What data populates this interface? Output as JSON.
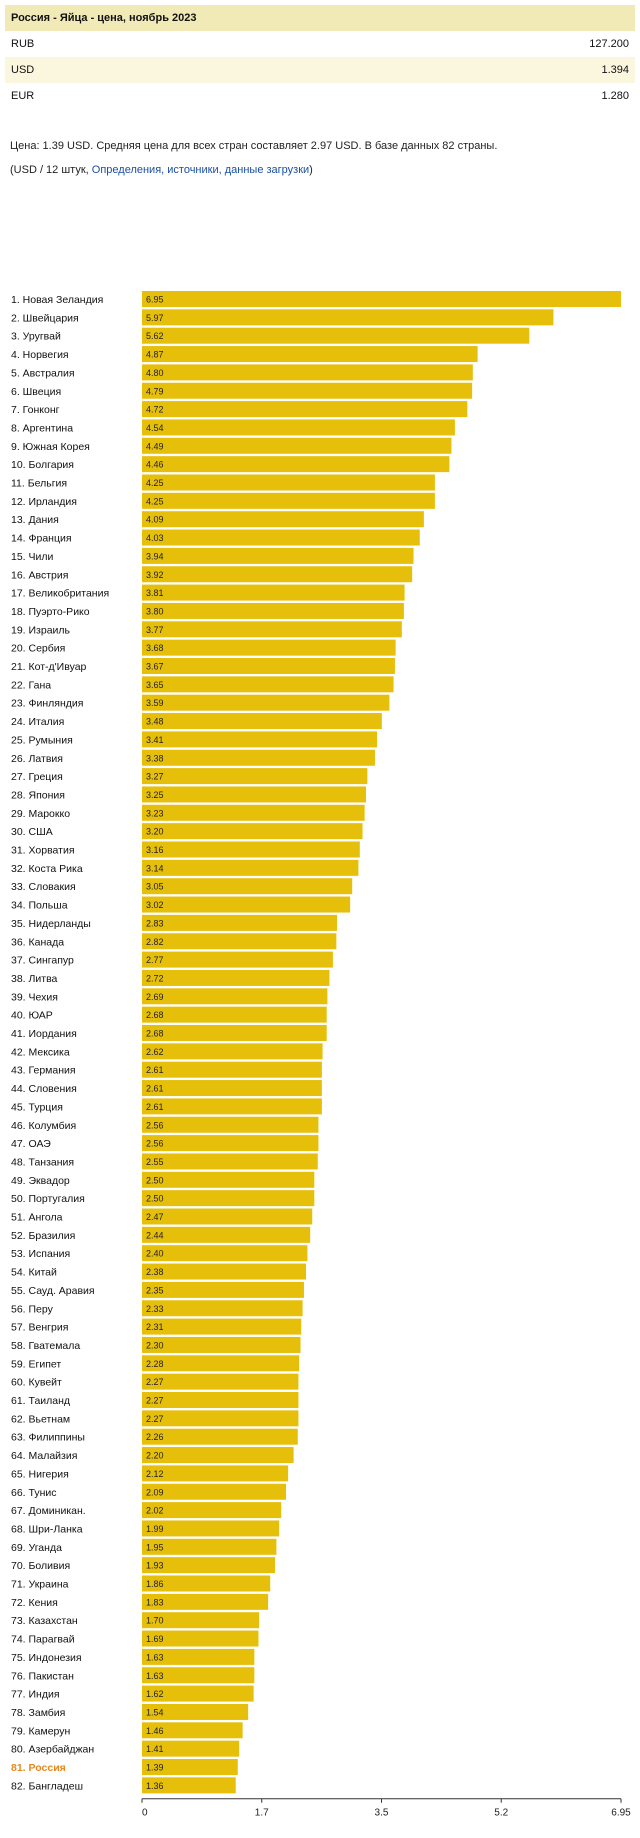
{
  "header": {
    "title": "Россия - Яйца - цена, ноябрь 2023"
  },
  "prices": [
    {
      "currency": "RUB",
      "value": "127.200"
    },
    {
      "currency": "USD",
      "value": "1.394"
    },
    {
      "currency": "EUR",
      "value": "1.280"
    }
  ],
  "info": {
    "summary": "Цена: 1.39 USD. Средняя цена для всех стран составляет 2.97 USD. В базе данных 82 страны.",
    "unit_prefix": "(USD / 12 штук, ",
    "link_text": "Определения, источники, данные загрузки",
    "unit_suffix": ")"
  },
  "chart_data": {
    "type": "bar",
    "orientation": "horizontal",
    "highlight_index": 80,
    "bar_color": "#e6bf0a",
    "highlight_label_color": "#e8891a",
    "xlim": [
      0,
      6.95
    ],
    "xticks": [
      "0",
      "1.7",
      "3.5",
      "5.2",
      "6.95"
    ],
    "xtick_values": [
      0,
      1.7375,
      3.475,
      5.2125,
      6.95
    ],
    "categories": [
      "1. Новая Зеландия",
      "2. Швейцария",
      "3. Уругвай",
      "4. Норвегия",
      "5. Австралия",
      "6. Швеция",
      "7. Гонконг",
      "8. Аргентина",
      "9. Южная Корея",
      "10. Болгария",
      "11. Бельгия",
      "12. Ирландия",
      "13. Дания",
      "14. Франция",
      "15. Чили",
      "16. Австрия",
      "17. Великобритания",
      "18. Пуэрто-Рико",
      "19. Израиль",
      "20. Сербия",
      "21. Кот-д'Ивуар",
      "22. Гана",
      "23. Финляндия",
      "24. Италия",
      "25. Румыния",
      "26. Латвия",
      "27. Греция",
      "28. Япония",
      "29. Марокко",
      "30. США",
      "31. Хорватия",
      "32. Коста Рика",
      "33. Словакия",
      "34. Польша",
      "35. Нидерланды",
      "36. Канада",
      "37. Сингапур",
      "38. Литва",
      "39. Чехия",
      "40. ЮАР",
      "41. Иордания",
      "42. Мексика",
      "43. Германия",
      "44. Словения",
      "45. Турция",
      "46. Колумбия",
      "47. ОАЭ",
      "48. Танзания",
      "49. Эквадор",
      "50. Португалия",
      "51. Ангола",
      "52. Бразилия",
      "53. Испания",
      "54. Китай",
      "55. Сауд. Аравия",
      "56. Перу",
      "57. Венгрия",
      "58. Гватемала",
      "59. Египет",
      "60. Кувейт",
      "61. Таиланд",
      "62. Вьетнам",
      "63. Филиппины",
      "64. Малайзия",
      "65. Нигерия",
      "66. Тунис",
      "67. Доминикан.",
      "68. Шри-Ланка",
      "69. Уганда",
      "70. Боливия",
      "71. Украина",
      "72. Кения",
      "73. Казахстан",
      "74. Парагвай",
      "75. Индонезия",
      "76. Пакистан",
      "77. Индия",
      "78. Замбия",
      "79. Камерун",
      "80. Азербайджан",
      "81. Россия",
      "82. Бангладеш"
    ],
    "values": [
      6.95,
      5.97,
      5.62,
      4.87,
      4.8,
      4.79,
      4.72,
      4.54,
      4.49,
      4.46,
      4.25,
      4.25,
      4.09,
      4.03,
      3.94,
      3.92,
      3.81,
      3.8,
      3.77,
      3.68,
      3.67,
      3.65,
      3.59,
      3.48,
      3.41,
      3.38,
      3.27,
      3.25,
      3.23,
      3.2,
      3.16,
      3.14,
      3.05,
      3.02,
      2.83,
      2.82,
      2.77,
      2.72,
      2.69,
      2.68,
      2.68,
      2.62,
      2.61,
      2.61,
      2.61,
      2.56,
      2.56,
      2.55,
      2.5,
      2.5,
      2.47,
      2.44,
      2.4,
      2.38,
      2.35,
      2.33,
      2.31,
      2.3,
      2.28,
      2.27,
      2.27,
      2.27,
      2.26,
      2.2,
      2.12,
      2.09,
      2.02,
      1.99,
      1.95,
      1.93,
      1.86,
      1.83,
      1.7,
      1.69,
      1.63,
      1.63,
      1.62,
      1.54,
      1.46,
      1.41,
      1.39,
      1.36
    ],
    "value_labels": [
      "6.95",
      "5.97",
      "5.62",
      "4.87",
      "4.80",
      "4.79",
      "4.72",
      "4.54",
      "4.49",
      "4.46",
      "4.25",
      "4.25",
      "4.09",
      "4.03",
      "3.94",
      "3.92",
      "3.81",
      "3.80",
      "3.77",
      "3.68",
      "3.67",
      "3.65",
      "3.59",
      "3.48",
      "3.41",
      "3.38",
      "3.27",
      "3.25",
      "3.23",
      "3.20",
      "3.16",
      "3.14",
      "3.05",
      "3.02",
      "2.83",
      "2.82",
      "2.77",
      "2.72",
      "2.69",
      "2.68",
      "2.68",
      "2.62",
      "2.61",
      "2.61",
      "2.61",
      "2.56",
      "2.56",
      "2.55",
      "2.50",
      "2.50",
      "2.47",
      "2.44",
      "2.40",
      "2.38",
      "2.35",
      "2.33",
      "2.31",
      "2.30",
      "2.28",
      "2.27",
      "2.27",
      "2.27",
      "2.26",
      "2.20",
      "2.12",
      "2.09",
      "2.02",
      "1.99",
      "1.95",
      "1.93",
      "1.86",
      "1.83",
      "1.70",
      "1.69",
      "1.63",
      "1.63",
      "1.62",
      "1.54",
      "1.46",
      "1.41",
      "1.39",
      "1.36"
    ]
  }
}
